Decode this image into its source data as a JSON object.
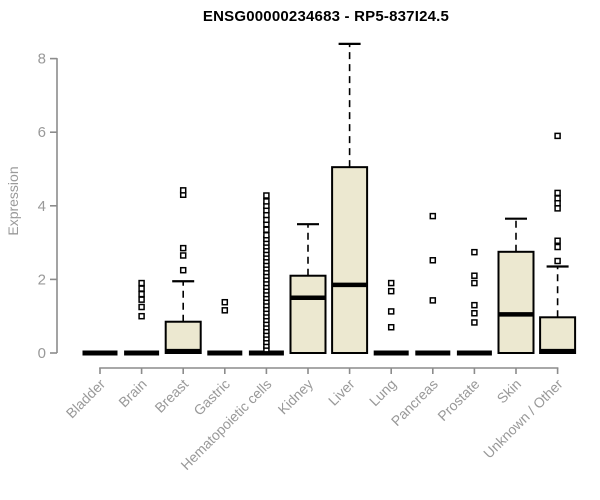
{
  "chart_data": {
    "type": "boxplot",
    "title": "ENSG00000234683 - RP5-837I24.5",
    "xlabel": "",
    "ylabel": "Expression",
    "ylim": [
      0,
      8.5
    ],
    "yticks": [
      0,
      2,
      4,
      6,
      8
    ],
    "grid": false,
    "legend": "none",
    "categories": [
      "Bladder",
      "Brain",
      "Breast",
      "Gastric",
      "Hematopoietic cells",
      "Kidney",
      "Liver",
      "Lung",
      "Pancreas",
      "Prostate",
      "Skin",
      "Unknown / Other"
    ],
    "boxes": [
      {
        "category": "Bladder",
        "q1": 0,
        "median": 0,
        "q3": 0,
        "whisker_low": 0,
        "whisker_high": 0,
        "outliers": []
      },
      {
        "category": "Brain",
        "q1": 0,
        "median": 0,
        "q3": 0,
        "whisker_low": 0,
        "whisker_high": 0,
        "outliers": [
          1.9,
          1.75,
          1.6,
          1.45,
          1.25,
          1.0
        ]
      },
      {
        "category": "Breast",
        "q1": 0,
        "median": 0.05,
        "q3": 0.85,
        "whisker_low": 0,
        "whisker_high": 1.95,
        "outliers": [
          2.25,
          2.65,
          2.85,
          4.3,
          4.42
        ]
      },
      {
        "category": "Gastric",
        "q1": 0,
        "median": 0,
        "q3": 0,
        "whisker_low": 0,
        "whisker_high": 0,
        "outliers": [
          1.38,
          1.16
        ]
      },
      {
        "category": "Hematopoietic cells",
        "q1": 0,
        "median": 0,
        "q3": 0,
        "whisker_low": 0,
        "whisker_high": 0,
        "outliers": [
          0.1,
          0.2,
          0.3,
          0.4,
          0.5,
          0.6,
          0.7,
          0.8,
          0.9,
          1.0,
          1.1,
          1.2,
          1.3,
          1.4,
          1.5,
          1.6,
          1.7,
          1.8,
          1.9,
          2.0,
          2.1,
          2.2,
          2.3,
          2.4,
          2.5,
          2.6,
          2.7,
          2.8,
          2.9,
          3.0,
          3.1,
          3.2,
          3.35,
          3.5,
          3.62,
          3.75,
          3.88,
          4.0,
          4.12,
          4.28
        ]
      },
      {
        "category": "Kidney",
        "q1": 0,
        "median": 1.5,
        "q3": 2.1,
        "whisker_low": 0,
        "whisker_high": 3.5,
        "outliers": []
      },
      {
        "category": "Liver",
        "q1": 0,
        "median": 1.85,
        "q3": 5.05,
        "whisker_low": 0,
        "whisker_high": 8.4,
        "outliers": []
      },
      {
        "category": "Lung",
        "q1": 0,
        "median": 0,
        "q3": 0,
        "whisker_low": 0,
        "whisker_high": 0,
        "outliers": [
          1.9,
          1.68,
          1.13,
          0.7
        ]
      },
      {
        "category": "Pancreas",
        "q1": 0,
        "median": 0,
        "q3": 0,
        "whisker_low": 0,
        "whisker_high": 0,
        "outliers": [
          3.72,
          2.52,
          1.43
        ]
      },
      {
        "category": "Prostate",
        "q1": 0,
        "median": 0,
        "q3": 0,
        "whisker_low": 0,
        "whisker_high": 0,
        "outliers": [
          2.74,
          2.1,
          1.9,
          1.3,
          1.08,
          0.83
        ]
      },
      {
        "category": "Skin",
        "q1": 0,
        "median": 1.05,
        "q3": 2.75,
        "whisker_low": 0,
        "whisker_high": 3.65,
        "outliers": []
      },
      {
        "category": "Unknown / Other",
        "q1": 0,
        "median": 0.05,
        "q3": 0.97,
        "whisker_low": 0,
        "whisker_high": 2.35,
        "outliers": [
          5.9,
          4.35,
          4.2,
          4.07,
          3.93,
          3.05,
          2.88,
          2.5
        ]
      }
    ],
    "colors": {
      "box_fill": "#ece8d0",
      "box_stroke": "#000000",
      "median": "#000000",
      "axis": "#8c8c8c",
      "tick_label": "#999999",
      "title": "#000000",
      "background": "#ffffff"
    }
  }
}
